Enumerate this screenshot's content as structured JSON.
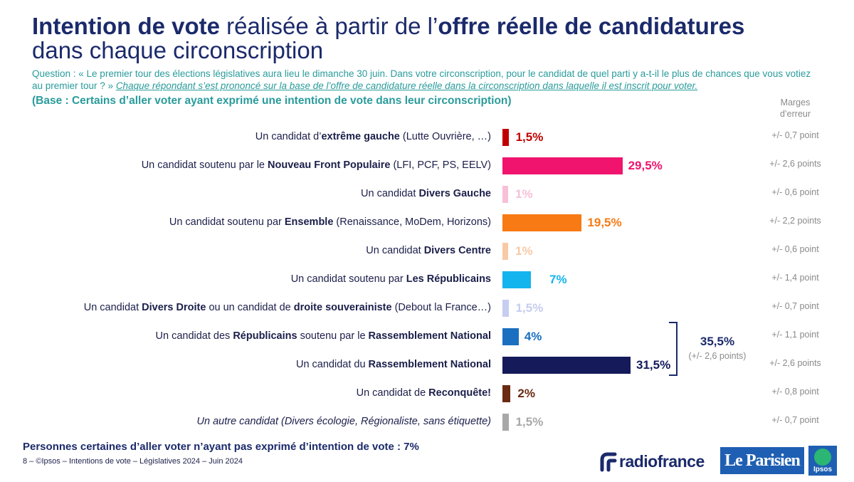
{
  "title": {
    "part1_bold": "Intention de vote",
    "part2_light": " réalisée à partir de l’",
    "part3_bold": "offre réelle de candidatures",
    "line2": "dans chaque circonscription"
  },
  "question": {
    "text": "Question : « Le premier tour des élections législatives aura lieu le dimanche 30 juin. Dans votre circonscription, pour le candidat de quel parti y a-t-il le plus de chances que vous votiez au premier tour ? » ",
    "note": "Chaque répondant s’est prononcé sur la base de l’offre de candidature réelle dans la circonscription dans laquelle il est inscrit pour voter."
  },
  "base": "(Base : Certains d’aller voter ayant exprimé une intention de vote dans leur circonscription)",
  "margins_header": "Marges d’erreur",
  "chart_data": {
    "type": "bar",
    "orientation": "horizontal",
    "categories": [
      {
        "pre": "Un candidat d’",
        "bold": "extrême gauche",
        "post": " (Lutte Ouvrière, …)",
        "italic": false
      },
      {
        "pre": "Un candidat soutenu par le ",
        "bold": "Nouveau Front Populaire",
        "post": " (LFI, PCF, PS, EELV)",
        "italic": false
      },
      {
        "pre": "Un candidat ",
        "bold": "Divers Gauche",
        "post": "",
        "italic": false
      },
      {
        "pre": "Un candidat soutenu par ",
        "bold": "Ensemble",
        "post": " (Renaissance, MoDem, Horizons)",
        "italic": false
      },
      {
        "pre": "Un candidat ",
        "bold": "Divers Centre",
        "post": "",
        "italic": false
      },
      {
        "pre": "Un candidat soutenu par ",
        "bold": "Les Républicains",
        "post": "",
        "italic": false
      },
      {
        "pre": "Un candidat ",
        "bold": "Divers Droite",
        "post": " ou un candidat de ",
        "bold2": "droite souverainiste",
        "post2": " (Debout la France…)",
        "italic": false
      },
      {
        "pre": "Un candidat des ",
        "bold": "Républicains",
        "post": " soutenu par le ",
        "bold2": "Rassemblement National",
        "post2": "",
        "italic": false
      },
      {
        "pre": "Un candidat du ",
        "bold": "Rassemblement National",
        "post": "",
        "italic": false
      },
      {
        "pre": "Un candidat de ",
        "bold": "Reconquête!",
        "post": "",
        "italic": false
      },
      {
        "pre": "Un autre candidat (Divers écologie, Régionaliste, sans étiquette)",
        "bold": "",
        "post": "",
        "italic": true
      }
    ],
    "values": [
      1.5,
      29.5,
      1,
      19.5,
      1,
      7,
      1.5,
      4,
      31.5,
      2,
      1.5
    ],
    "value_labels": [
      "1,5%",
      "29,5%",
      "1%",
      "19,5%",
      "1%",
      "7%",
      "1,5%",
      "4%",
      "31,5%",
      "2%",
      "1,5%"
    ],
    "colors": [
      "#c00000",
      "#f0146e",
      "#f7c0d8",
      "#f77a14",
      "#f9c9a6",
      "#14b4ee",
      "#c6cdf0",
      "#1a6fc0",
      "#141a5a",
      "#6b2a12",
      "#a8a8a8"
    ],
    "label_colors": [
      "#c00000",
      "#f0146e",
      "#f7c0d8",
      "#f77a14",
      "#f9c9a6",
      "#14b4ee",
      "#c6cdf0",
      "#1a6fc0",
      "#141a5a",
      "#6b2a12",
      "#a8a8a8"
    ],
    "margins_of_error": [
      "+/- 0,7 point",
      "+/- 2,6 points",
      "+/- 0,6 point",
      "+/- 2,2 points",
      "+/- 0,6 point",
      "+/- 1,4 point",
      "+/- 0,7 point",
      "+/- 1,1 point",
      "+/- 2,6 points",
      "+/- 0,8 point",
      "+/- 0,7 point"
    ],
    "xlim": [
      0,
      31.5
    ],
    "grid": false,
    "bracket": {
      "from_index": 7,
      "to_index": 8,
      "value_label": "35,5%",
      "moe_label": "(+/- 2,6 points)"
    }
  },
  "footer_note": "Personnes certaines d’aller voter n’ayant pas exprimé d’intention de vote : 7%",
  "source": "8 – ©Ipsos – Intentions de vote – Législatives 2024 – Juin 2024",
  "logos": {
    "radiofrance": "radiofrance",
    "leparisien": "Le Parisien",
    "ipsos": "Ipsos"
  }
}
